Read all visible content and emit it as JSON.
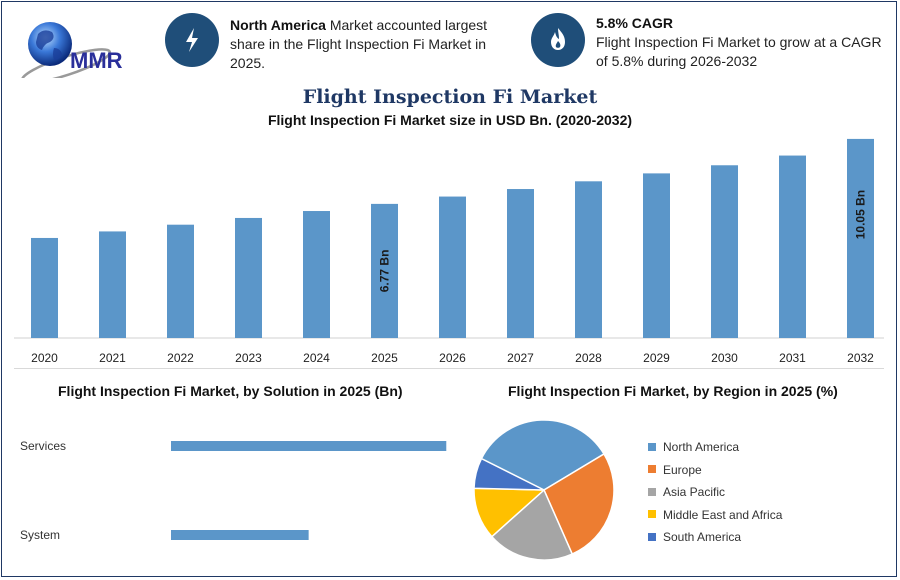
{
  "brand": {
    "logo_text": "MMR"
  },
  "info_cards": [
    {
      "icon": "lightning-icon",
      "bold": "North America",
      "text": " Market accounted largest share in the Flight Inspection Fi Market in 2025."
    },
    {
      "icon": "flame-icon",
      "bold": "5.8% CAGR",
      "text": "Flight Inspection Fi Market to grow at a CAGR of 5.8% during 2026-2032"
    }
  ],
  "title": "Flight Inspection Fi Market",
  "colors": {
    "bar": "#5b96c9",
    "accent": "#1f4e79",
    "title": "#1f3864"
  },
  "chart_data": [
    {
      "type": "bar",
      "title": "Flight Inspection Fi Market size in USD Bn. (2020-2032)",
      "categories": [
        "2020",
        "2021",
        "2022",
        "2023",
        "2024",
        "2025",
        "2026",
        "2027",
        "2028",
        "2029",
        "2030",
        "2031",
        "2032"
      ],
      "values": [
        5.05,
        5.38,
        5.72,
        6.06,
        6.41,
        6.77,
        7.14,
        7.52,
        7.91,
        8.31,
        8.72,
        9.21,
        10.05
      ],
      "data_labels": [
        {
          "index": 5,
          "text": "6.77 Bn"
        },
        {
          "index": 12,
          "text": "10.05 Bn"
        }
      ],
      "xlabel": "",
      "ylabel": "",
      "ylim": [
        0,
        10.5
      ],
      "grid": false
    },
    {
      "type": "bar",
      "orientation": "horizontal",
      "title": "Flight Inspection Fi Market, by Solution in 2025 (Bn)",
      "categories": [
        "Services",
        "System"
      ],
      "values": [
        4.1,
        2.05
      ],
      "xlim": [
        0,
        4.2
      ],
      "grid": false
    },
    {
      "type": "pie",
      "title": "Flight Inspection Fi Market, by Region in 2025 (%)",
      "labels": [
        "North America",
        "Europe",
        "Asia Pacific",
        "Middle East and Africa",
        "South America"
      ],
      "values": [
        34,
        27,
        20,
        12,
        7
      ],
      "colors": [
        "#5b96c9",
        "#ed7d31",
        "#a5a5a5",
        "#ffc000",
        "#4472c4"
      ],
      "legend": "right"
    }
  ]
}
